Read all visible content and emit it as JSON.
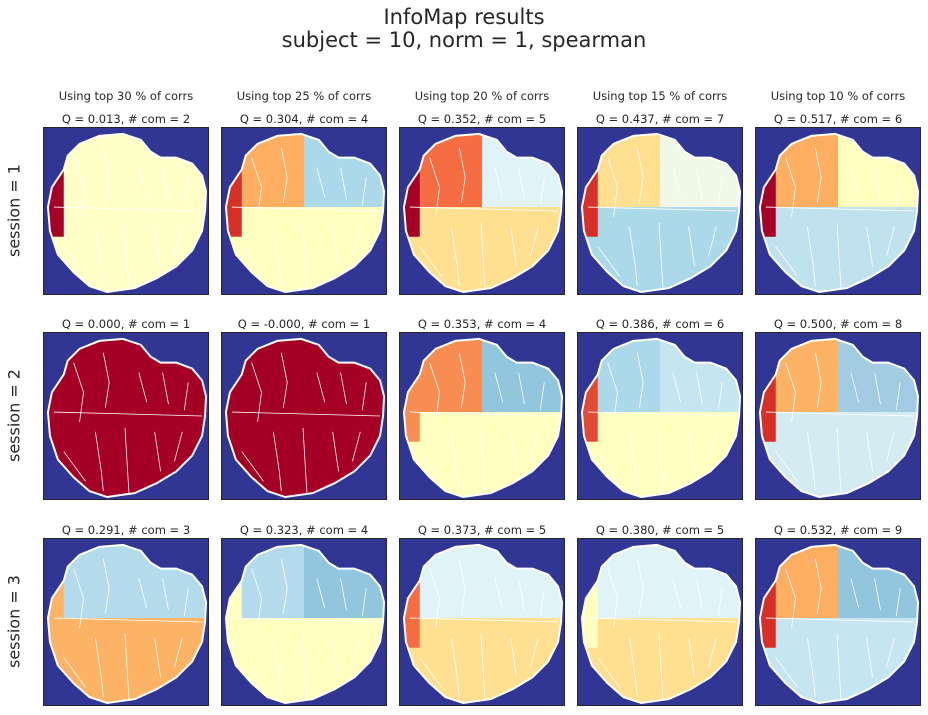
{
  "figure": {
    "title_line1": "InfoMap results",
    "title_line2": "subject = 10,   norm = 1,   spearman"
  },
  "colors": {
    "background": "#313695",
    "boundary": "#ffffff",
    "palette": [
      "#a50026",
      "#d73027",
      "#f46d43",
      "#fdae61",
      "#fee090",
      "#ffffbf",
      "#e0f3f8",
      "#abd9e9",
      "#74add1",
      "#4575b4"
    ]
  },
  "chart_data": {
    "type": "heatmap",
    "columns": [
      "Using top 30 % of corrs",
      "Using top 25 % of corrs",
      "Using top 20 % of corrs",
      "Using top 15 % of corrs",
      "Using top 10 % of corrs"
    ],
    "rows": [
      "session = 1",
      "session = 2",
      "session = 3"
    ],
    "panels": [
      [
        {
          "title": "Q = 0.013,  # com = 2",
          "Q": 0.013,
          "communities": 2,
          "colors": [
            "#ffffc8",
            "#ffffc8",
            "#ffffc8",
            "#ffffc8",
            "#a50026"
          ]
        },
        {
          "title": "Q = 0.304,  # com = 4",
          "Q": 0.304,
          "communities": 4,
          "colors": [
            "#fdae61",
            "#abd9e9",
            "#ffffbf",
            "#ffffbf",
            "#d73027"
          ]
        },
        {
          "title": "Q = 0.352,  # com = 5",
          "Q": 0.352,
          "communities": 5,
          "colors": [
            "#f46d43",
            "#e0f3f8",
            "#fee090",
            "#fee090",
            "#a50026"
          ]
        },
        {
          "title": "Q = 0.437,  # com = 7",
          "Q": 0.437,
          "communities": 7,
          "colors": [
            "#fee090",
            "#f0f8e8",
            "#abd9e9",
            "#abd9e9",
            "#d73027"
          ]
        },
        {
          "title": "Q = 0.517,  # com = 6",
          "Q": 0.517,
          "communities": 6,
          "colors": [
            "#fdae61",
            "#ffffbf",
            "#c0e2ee",
            "#c0e2ee",
            "#a50026"
          ]
        }
      ],
      [
        {
          "title": "Q = 0.000,  # com = 1",
          "Q": 0.0,
          "communities": 1,
          "colors": [
            "#a50026",
            "#a50026",
            "#a50026",
            "#a50026",
            "#a50026"
          ]
        },
        {
          "title": "Q = -0.000,  # com = 1",
          "Q": -0.0,
          "communities": 1,
          "colors": [
            "#a50026",
            "#a50026",
            "#a50026",
            "#a50026",
            "#a50026"
          ]
        },
        {
          "title": "Q = 0.353,  # com = 4",
          "Q": 0.353,
          "communities": 4,
          "colors": [
            "#f88d52",
            "#92c5de",
            "#ffffbf",
            "#ffffbf",
            "#f88d52"
          ]
        },
        {
          "title": "Q = 0.386,  # com = 6",
          "Q": 0.386,
          "communities": 6,
          "colors": [
            "#abd9e9",
            "#c5e6f0",
            "#ffffbf",
            "#ffffbf",
            "#e34a33"
          ]
        },
        {
          "title": "Q = 0.500,  # com = 8",
          "Q": 0.5,
          "communities": 8,
          "colors": [
            "#fdb366",
            "#a3cce3",
            "#d4ebf2",
            "#d4ebf2",
            "#d73027"
          ]
        }
      ],
      [
        {
          "title": "Q = 0.291,  # com = 3",
          "Q": 0.291,
          "communities": 3,
          "colors": [
            "#b4dbec",
            "#b4dbec",
            "#fdb366",
            "#fdb366",
            "#fdb366"
          ]
        },
        {
          "title": "Q = 0.323,  # com = 4",
          "Q": 0.323,
          "communities": 4,
          "colors": [
            "#b4dbec",
            "#92c5de",
            "#ffffbf",
            "#ffffbf",
            "#ffffbf"
          ]
        },
        {
          "title": "Q = 0.373,  # com = 5",
          "Q": 0.373,
          "communities": 5,
          "colors": [
            "#e0f3f8",
            "#e0f3f8",
            "#fee090",
            "#fee090",
            "#f46d43"
          ]
        },
        {
          "title": "Q = 0.380,  # com = 5",
          "Q": 0.38,
          "communities": 5,
          "colors": [
            "#e0f3f8",
            "#e0f3f8",
            "#fee090",
            "#fee090",
            "#ffffbf"
          ]
        },
        {
          "title": "Q = 0.532,  # com = 9",
          "Q": 0.532,
          "communities": 9,
          "colors": [
            "#fdae61",
            "#92c5de",
            "#c5e6f0",
            "#c5e6f0",
            "#d73027"
          ]
        }
      ]
    ]
  }
}
